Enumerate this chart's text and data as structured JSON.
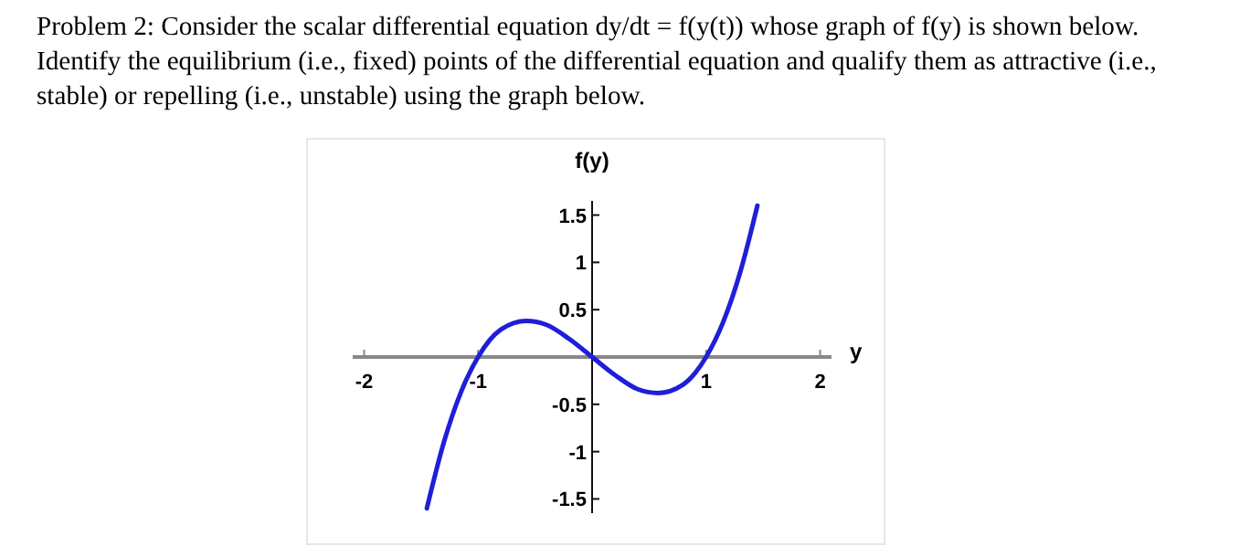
{
  "chart_data": {
    "type": "line",
    "title": "Problem 2: Consider the scalar differential equation dy/dt = f(y(t)) whose graph of f(y) is shown below. Identify the equilibrium (i.e., fixed) points of the differential equation and qualify them as attractive (i.e., stable) or repelling (i.e., unstable) using the graph below.",
    "xlabel": "y",
    "ylabel": "f(y)",
    "x": [
      -1.45,
      -1.3,
      -1.15,
      -1,
      -0.8,
      -0.577,
      -0.4,
      -0.2,
      0,
      0.2,
      0.4,
      0.577,
      0.8,
      1,
      1.15,
      1.3,
      1.45
    ],
    "series": [
      {
        "color": "#1f1fd8",
        "values": [
          -1.6,
          -0.9,
          -0.37,
          0,
          0.29,
          0.38,
          0.34,
          0.19,
          0,
          -0.19,
          -0.34,
          -0.38,
          -0.29,
          0,
          0.37,
          0.9,
          1.6
        ]
      }
    ],
    "xlim": [
      -2.1,
      2.1
    ],
    "ylim": [
      -1.65,
      1.65
    ],
    "xticks": [
      -2,
      -1,
      1,
      2
    ],
    "yticks": [
      -1.5,
      -1,
      -0.5,
      0.5,
      1,
      1.5
    ],
    "grid": false,
    "marker": "none",
    "line_style": "solid"
  }
}
